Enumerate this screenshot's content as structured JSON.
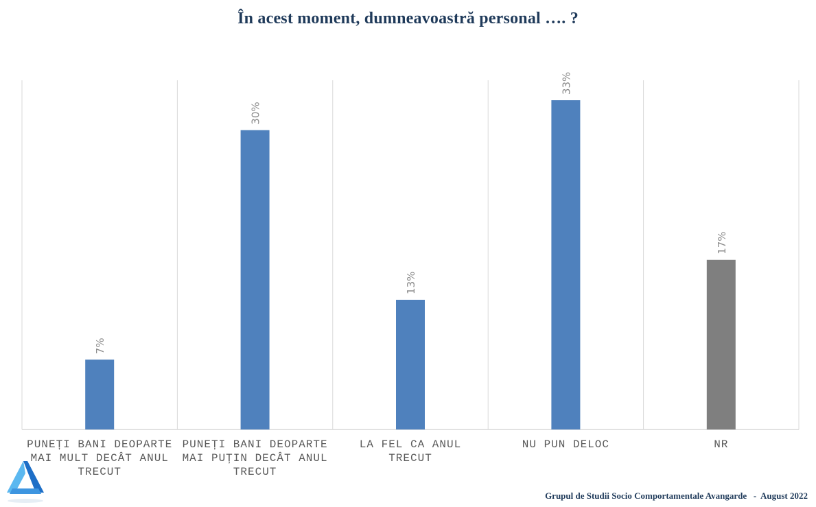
{
  "title": "În acest moment, dumneavoastră personal …. ?",
  "footer": "Grupul de Studii Socio Comportamentale Avangarde   -  August 2022",
  "colors": {
    "bar": "#4f81bd",
    "bar_nr": "#7f7f7f",
    "grid": "#d9d9d9",
    "label": "#8c8c8c",
    "title": "#1f3a5a",
    "logo_light": "#5bb8f0",
    "logo_dark": "#1e6fc7"
  },
  "logo_icon": "avangarde-logo-icon",
  "chart_data": {
    "type": "bar",
    "title": "În acest moment, dumneavoastră personal …. ?",
    "categories": [
      "Puneți bani deoparte mai mult decât anul trecut",
      "Puneți bani deoparte mai puțin decât anul trecut",
      "La fel ca anul trecut",
      "Nu pun deloc",
      "NR"
    ],
    "values": [
      7,
      30,
      13,
      33,
      17
    ],
    "value_labels": [
      "7%",
      "30%",
      "13%",
      "33%",
      "17%"
    ],
    "ylim": [
      0,
      35
    ],
    "unit": "%",
    "grid": "vertical separators",
    "legend": "none",
    "bar_colors": [
      "#4f81bd",
      "#4f81bd",
      "#4f81bd",
      "#4f81bd",
      "#7f7f7f"
    ]
  }
}
